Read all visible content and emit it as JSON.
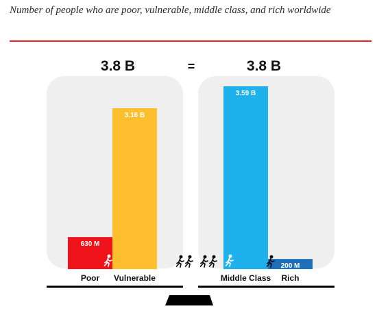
{
  "title": "Number of people who are poor, vulnerable, middle class, and rich worldwide",
  "colors": {
    "accent_rule": "#e8211f",
    "poor": "#f0121a",
    "vulnerable": "#fdbf2d",
    "middle_class": "#1eb1ec",
    "rich": "#1f6fb8",
    "panel": "#efefef",
    "baseline": "#000000"
  },
  "chart_data": {
    "type": "bar",
    "title": "Number of people who are poor, vulnerable, middle class, and rich worldwide",
    "xlabel": "",
    "ylabel": "",
    "ylim": [
      0,
      3.6
    ],
    "unit": "B",
    "grid": false,
    "equation": "=",
    "groups": [
      {
        "total_label": "3.8 B",
        "categories": [
          "Poor",
          "Vulnerable"
        ],
        "values": [
          0.63,
          3.16
        ],
        "value_labels": [
          "630 M",
          "3.16 B"
        ],
        "color_keys": [
          "poor",
          "vulnerable"
        ]
      },
      {
        "total_label": "3.8 B",
        "categories": [
          "Middle Class",
          "Rich"
        ],
        "values": [
          3.59,
          0.2
        ],
        "value_labels": [
          "3.59 B",
          "200 M"
        ],
        "color_keys": [
          "middle_class",
          "rich"
        ]
      }
    ],
    "icons": [
      "runner-icon",
      "runner-icon",
      "runner-icon",
      "runner-icon",
      "runner-icon",
      "runner-icon",
      "runner-icon"
    ]
  }
}
